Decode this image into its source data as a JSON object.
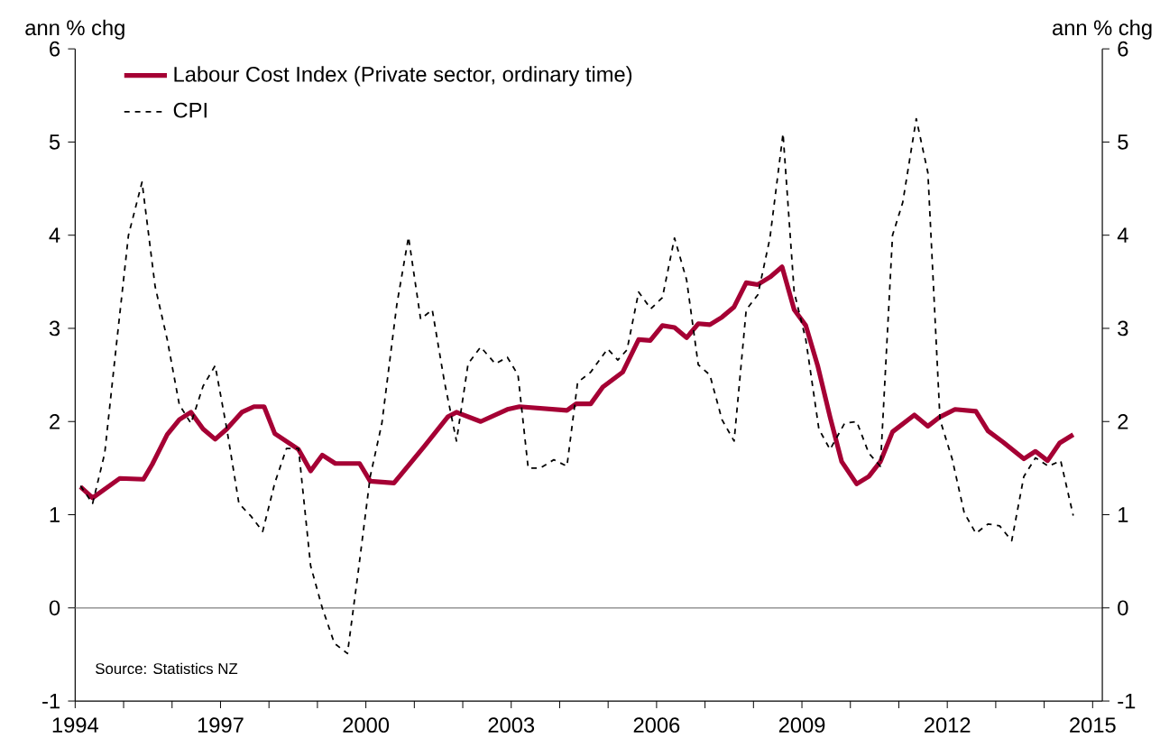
{
  "chart_data": {
    "type": "line",
    "ylabel": "ann % chg",
    "y2label": "ann % chg",
    "xlim": [
      1994,
      2015.2
    ],
    "ylim": [
      -1,
      6
    ],
    "y2lim": [
      -1,
      6
    ],
    "xticks": [
      1994,
      {
        "value": 1995,
        "label": null
      },
      {
        "value": 1996,
        "label": null
      },
      1997,
      {
        "value": 1998,
        "label": null
      },
      {
        "value": 1999,
        "label": null
      },
      2000,
      {
        "value": 2001,
        "label": null
      },
      {
        "value": 2002,
        "label": null
      },
      2003,
      {
        "value": 2004,
        "label": null
      },
      {
        "value": 2005,
        "label": null
      },
      2006,
      {
        "value": 2007,
        "label": null
      },
      {
        "value": 2008,
        "label": null
      },
      2009,
      {
        "value": 2010,
        "label": null
      },
      {
        "value": 2011,
        "label": null
      },
      2012,
      {
        "value": 2013,
        "label": null
      },
      {
        "value": 2014,
        "label": null
      },
      2015
    ],
    "yticks": [
      -1,
      0,
      1,
      2,
      3,
      4,
      5,
      6
    ],
    "y2ticks": [
      -1,
      0,
      1,
      2,
      3,
      4,
      5,
      6
    ],
    "grid": false,
    "legend": "top left",
    "ref_lines": [
      {
        "axis": "y",
        "value": 0,
        "color": "#808080"
      }
    ],
    "annotations": [
      "Source: Statistics NZ"
    ],
    "series": [
      {
        "name": "Labour Cost Index (Private sector, ordinary time)",
        "color": "#a50034",
        "line_style": "solid",
        "x": [
          1994.11,
          1994.36,
          1994.92,
          1995.41,
          1995.59,
          1995.9,
          1996.15,
          1996.39,
          1996.64,
          1996.89,
          1997.13,
          1997.44,
          1997.69,
          1997.9,
          1998.12,
          1998.61,
          1998.86,
          1999.1,
          1999.37,
          1999.87,
          2000.09,
          2000.58,
          2001.2,
          2001.69,
          2001.87,
          2002.37,
          2002.92,
          2003.17,
          2004.15,
          2004.34,
          2004.64,
          2004.89,
          2005.3,
          2005.63,
          2005.87,
          2006.12,
          2006.37,
          2006.62,
          2006.86,
          2007.1,
          2007.35,
          2007.6,
          2007.85,
          2008.09,
          2008.34,
          2008.59,
          2008.84,
          2009.08,
          2009.33,
          2009.58,
          2009.82,
          2010.13,
          2010.38,
          2010.62,
          2010.87,
          2011.32,
          2011.6,
          2011.85,
          2012.16,
          2012.59,
          2012.84,
          2013.15,
          2013.58,
          2013.82,
          2014.07,
          2014.32,
          2014.6
        ],
        "values": [
          1.3,
          1.18,
          1.39,
          1.38,
          1.54,
          1.86,
          2.02,
          2.1,
          1.92,
          1.81,
          1.92,
          2.1,
          2.16,
          2.16,
          1.87,
          1.7,
          1.47,
          1.64,
          1.55,
          1.55,
          1.36,
          1.34,
          1.73,
          2.05,
          2.1,
          2.0,
          2.13,
          2.16,
          2.12,
          2.19,
          2.19,
          2.37,
          2.53,
          2.88,
          2.87,
          3.03,
          3.01,
          2.9,
          3.05,
          3.04,
          3.12,
          3.23,
          3.49,
          3.47,
          3.55,
          3.66,
          3.2,
          3.03,
          2.59,
          2.05,
          1.57,
          1.33,
          1.41,
          1.57,
          1.89,
          2.07,
          1.95,
          2.05,
          2.13,
          2.11,
          1.9,
          1.78,
          1.6,
          1.68,
          1.58,
          1.77,
          1.86
        ]
      },
      {
        "name": "CPI",
        "color": "#000000",
        "line_style": "dashed",
        "x": [
          1994.11,
          1994.36,
          1994.61,
          1994.85,
          1995.1,
          1995.38,
          1995.65,
          1995.9,
          1996.15,
          1996.39,
          1996.64,
          1996.89,
          1997.13,
          1997.38,
          1997.62,
          1997.87,
          1998.12,
          1998.36,
          1998.61,
          1998.86,
          1999.1,
          1999.35,
          1999.62,
          1999.84,
          2000.09,
          2000.33,
          2000.64,
          2000.88,
          2001.13,
          2001.37,
          2001.62,
          2001.87,
          2002.11,
          2002.37,
          2002.67,
          2002.92,
          2003.14,
          2003.35,
          2003.6,
          2003.88,
          2004.15,
          2004.37,
          2004.64,
          2004.99,
          2005.2,
          2005.39,
          2005.63,
          2005.88,
          2006.12,
          2006.37,
          2006.62,
          2006.86,
          2007.1,
          2007.35,
          2007.6,
          2007.85,
          2008.09,
          2008.34,
          2008.61,
          2008.84,
          2009.08,
          2009.35,
          2009.58,
          2009.88,
          2010.13,
          2010.38,
          2010.62,
          2010.87,
          2011.08,
          2011.36,
          2011.6,
          2011.85,
          2012.1,
          2012.35,
          2012.59,
          2012.84,
          2013.08,
          2013.33,
          2013.58,
          2013.82,
          2014.09,
          2014.34,
          2014.6
        ],
        "values": [
          1.31,
          1.12,
          1.66,
          2.82,
          4.0,
          4.57,
          3.45,
          2.88,
          2.18,
          1.98,
          2.38,
          2.6,
          1.92,
          1.12,
          0.99,
          0.82,
          1.34,
          1.71,
          1.71,
          0.45,
          0.0,
          -0.38,
          -0.49,
          0.38,
          1.41,
          1.98,
          3.26,
          3.98,
          3.1,
          3.2,
          2.43,
          1.79,
          2.62,
          2.8,
          2.62,
          2.69,
          2.5,
          1.5,
          1.5,
          1.59,
          1.52,
          2.42,
          2.53,
          2.78,
          2.66,
          2.77,
          3.39,
          3.21,
          3.33,
          3.97,
          3.52,
          2.61,
          2.5,
          2.02,
          1.79,
          3.2,
          3.36,
          3.97,
          5.09,
          3.39,
          2.88,
          1.92,
          1.7,
          1.98,
          2.0,
          1.66,
          1.52,
          4.0,
          4.35,
          5.25,
          4.67,
          2.02,
          1.6,
          1.02,
          0.8,
          0.9,
          0.88,
          0.72,
          1.41,
          1.61,
          1.52,
          1.58,
          0.99
        ]
      }
    ]
  }
}
